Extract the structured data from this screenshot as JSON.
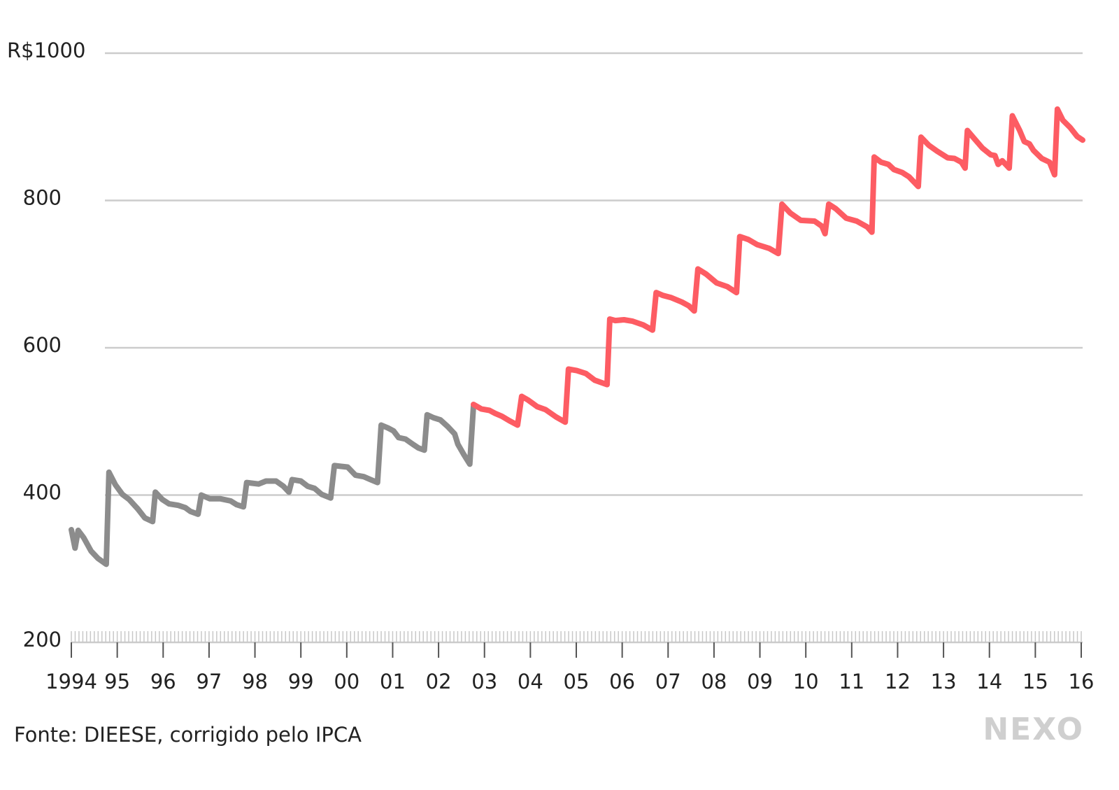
{
  "chart_data": {
    "type": "line",
    "source": "Fonte: DIEESE, corrigido pelo IPCA",
    "logo": "NEXO",
    "xlim": [
      1994,
      2016
    ],
    "xticks": [
      {
        "value": 1994,
        "label": "1994"
      },
      {
        "value": 1995,
        "label": "95"
      },
      {
        "value": 1996,
        "label": "96"
      },
      {
        "value": 1997,
        "label": "97"
      },
      {
        "value": 1998,
        "label": "98"
      },
      {
        "value": 1999,
        "label": "99"
      },
      {
        "value": 2000,
        "label": "00"
      },
      {
        "value": 2001,
        "label": "01"
      },
      {
        "value": 2002,
        "label": "02"
      },
      {
        "value": 2003,
        "label": "03"
      },
      {
        "value": 2004,
        "label": "04"
      },
      {
        "value": 2005,
        "label": "05"
      },
      {
        "value": 2006,
        "label": "06"
      },
      {
        "value": 2007,
        "label": "07"
      },
      {
        "value": 2008,
        "label": "08"
      },
      {
        "value": 2009,
        "label": "09"
      },
      {
        "value": 2010,
        "label": "10"
      },
      {
        "value": 2011,
        "label": "11"
      },
      {
        "value": 2012,
        "label": "12"
      },
      {
        "value": 2013,
        "label": "13"
      },
      {
        "value": 2014,
        "label": "14"
      },
      {
        "value": 2015,
        "label": "15"
      },
      {
        "value": 2016,
        "label": "16"
      }
    ],
    "ylim": [
      200,
      1000
    ],
    "yticks": [
      200,
      400,
      600,
      800,
      {
        "value": 1000,
        "label": "R$1000"
      }
    ],
    "grid": true,
    "series": [
      {
        "color": "#8c8c8c",
        "x": [
          1994.0,
          1994.08,
          1994.15,
          1994.27,
          1994.43,
          1994.58,
          1994.76,
          1994.82,
          1994.96,
          1995.11,
          1995.26,
          1995.45,
          1995.6,
          1995.77,
          1995.83,
          1995.98,
          1996.13,
          1996.33,
          1996.48,
          1996.59,
          1996.76,
          1996.83,
          1997.02,
          1997.25,
          1997.47,
          1997.6,
          1997.75,
          1997.82,
          1998.08,
          1998.24,
          1998.46,
          1998.62,
          1998.74,
          1998.81,
          1999.0,
          1999.15,
          1999.3,
          1999.45,
          1999.65,
          1999.73,
          1999.88,
          2000.02,
          2000.19,
          2000.37,
          2000.52,
          2000.67,
          2000.75,
          2000.9,
          2001.02,
          2001.13,
          2001.28,
          2001.44,
          2001.56,
          2001.69,
          2001.75,
          2001.89,
          2002.04,
          2002.2,
          2002.35,
          2002.42,
          2002.55,
          2002.68,
          2002.76
        ],
        "values": [
          353,
          328,
          352,
          342,
          324,
          314,
          306,
          431,
          414,
          401,
          394,
          381,
          369,
          364,
          404,
          394,
          388,
          386,
          383,
          378,
          374,
          400,
          395,
          395,
          392,
          387,
          384,
          417,
          415,
          419,
          419,
          412,
          404,
          421,
          419,
          412,
          409,
          401,
          396,
          440,
          439,
          438,
          427,
          425,
          421,
          417,
          495,
          491,
          487,
          478,
          476,
          469,
          464,
          461,
          509,
          505,
          502,
          493,
          483,
          469,
          455,
          442,
          521
        ]
      },
      {
        "color": "#fd5c63",
        "x": [
          2002.76,
          2002.93,
          2003.11,
          2003.23,
          2003.38,
          2003.54,
          2003.72,
          2003.81,
          2003.95,
          2004.15,
          2004.33,
          2004.56,
          2004.76,
          2004.83,
          2005.01,
          2005.21,
          2005.4,
          2005.67,
          2005.73,
          2005.85,
          2006.04,
          2006.23,
          2006.46,
          2006.66,
          2006.74,
          2006.89,
          2007.07,
          2007.3,
          2007.45,
          2007.57,
          2007.65,
          2007.83,
          2008.06,
          2008.29,
          2008.49,
          2008.56,
          2008.75,
          2008.94,
          2009.2,
          2009.4,
          2009.48,
          2009.66,
          2009.89,
          2010.19,
          2010.35,
          2010.42,
          2010.5,
          2010.65,
          2010.88,
          2011.11,
          2011.34,
          2011.44,
          2011.49,
          2011.64,
          2011.8,
          2011.92,
          2012.1,
          2012.25,
          2012.45,
          2012.51,
          2012.68,
          2012.86,
          2013.09,
          2013.24,
          2013.39,
          2013.47,
          2013.52,
          2013.67,
          2013.85,
          2014.03,
          2014.12,
          2014.19,
          2014.28,
          2014.43,
          2014.5,
          2014.66,
          2014.76,
          2014.87,
          2014.96,
          2015.14,
          2015.31,
          2015.42,
          2015.48,
          2015.6,
          2015.76,
          2015.91,
          2016.03
        ],
        "values": [
          523,
          517,
          515,
          511,
          507,
          501,
          495,
          534,
          529,
          520,
          516,
          506,
          499,
          571,
          569,
          565,
          556,
          550,
          639,
          637,
          638,
          636,
          631,
          624,
          675,
          671,
          668,
          662,
          657,
          650,
          707,
          700,
          688,
          683,
          675,
          751,
          747,
          740,
          735,
          728,
          795,
          783,
          773,
          772,
          765,
          755,
          795,
          789,
          776,
          772,
          764,
          757,
          859,
          852,
          849,
          842,
          838,
          832,
          819,
          886,
          875,
          867,
          858,
          857,
          852,
          844,
          895,
          884,
          871,
          862,
          861,
          849,
          854,
          844,
          915,
          895,
          880,
          877,
          868,
          857,
          852,
          835,
          924,
          909,
          899,
          887,
          882
        ]
      }
    ]
  }
}
